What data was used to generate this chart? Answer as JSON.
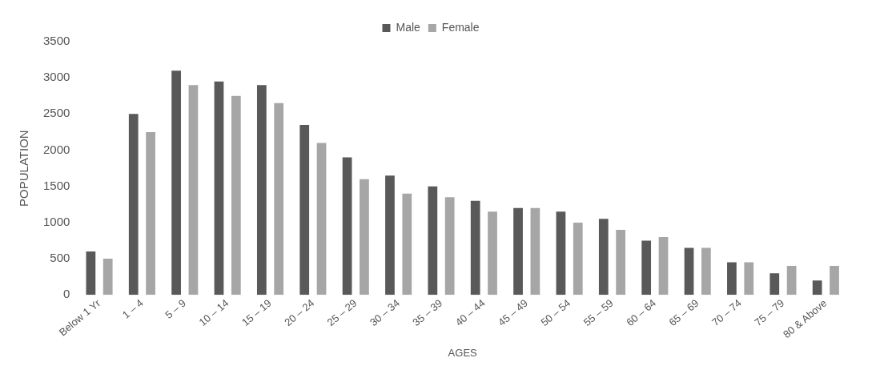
{
  "chart_data": {
    "type": "bar",
    "xlabel": "AGES",
    "ylabel": "POPULATION",
    "categories": [
      "Below 1 Yr",
      "1 – 4",
      "5 – 9",
      "10 – 14",
      "15 – 19",
      "20 – 24",
      "25 – 29",
      "30 – 34",
      "35 – 39",
      "40 – 44",
      "45 – 49",
      "50 – 54",
      "55 – 59",
      "60 – 64",
      "65 – 69",
      "70 – 74",
      "75 – 79",
      "80 & Above"
    ],
    "series": [
      {
        "name": "Male",
        "color": "#595959",
        "values": [
          600,
          2500,
          3100,
          2950,
          2900,
          2350,
          1900,
          1650,
          1500,
          1300,
          1200,
          1150,
          1050,
          750,
          650,
          450,
          300,
          200
        ]
      },
      {
        "name": "Female",
        "color": "#a6a6a6",
        "values": [
          500,
          2250,
          2900,
          2750,
          2650,
          2100,
          1600,
          1400,
          1350,
          1150,
          1200,
          1000,
          900,
          800,
          650,
          450,
          400,
          400
        ]
      }
    ],
    "ylim": [
      0,
      3500
    ],
    "yticks": [
      0,
      500,
      1000,
      1500,
      2000,
      2500,
      3000,
      3500
    ],
    "grid": false,
    "legend": "top"
  }
}
